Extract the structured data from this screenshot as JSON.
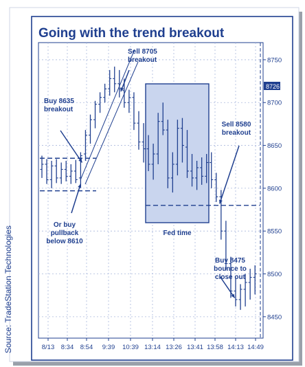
{
  "chart_data": {
    "type": "ohlc-bar",
    "title": "Going with the trend breakout",
    "source": "Source: TradeStation Technologies",
    "x_ticks": [
      "8/13",
      "8:34",
      "8:54",
      "9:39",
      "10:39",
      "13:14",
      "13:26",
      "13:41",
      "13:58",
      "14:13",
      "14:49"
    ],
    "y_ticks": [
      8750,
      8700,
      8650,
      8600,
      8550,
      8500,
      8450
    ],
    "ylim": [
      8425,
      8770
    ],
    "last_price": "8726",
    "grid": true,
    "reference_lines": [
      8635,
      8597,
      8580
    ],
    "annotations": [
      {
        "text": [
          "Buy 8635",
          "breakout"
        ],
        "target": [
          8.3,
          8630
        ]
      },
      {
        "text": [
          "Sell 8705",
          "breakout"
        ],
        "target": [
          16.3,
          8713
        ]
      },
      {
        "text": [
          "Or buy",
          "pullback",
          "below 8610"
        ],
        "target": [
          8.0,
          8605
        ]
      },
      {
        "text": [
          "Fed time"
        ],
        "target": null
      },
      {
        "text": [
          "Sell 8580",
          "breakout"
        ],
        "target": [
          36.7,
          8582
        ]
      },
      {
        "text": [
          "Buy 8475",
          "bounce to",
          "close out"
        ],
        "target": [
          39.8,
          8472
        ]
      }
    ],
    "bars": [
      [
        8622,
        8638,
        8612,
        8628
      ],
      [
        8628,
        8634,
        8605,
        8610
      ],
      [
        8610,
        8632,
        8600,
        8626
      ],
      [
        8626,
        8634,
        8606,
        8612
      ],
      [
        8612,
        8630,
        8605,
        8622
      ],
      [
        8622,
        8632,
        8608,
        8614
      ],
      [
        8614,
        8628,
        8605,
        8620
      ],
      [
        8620,
        8633,
        8606,
        8610
      ],
      [
        8612,
        8642,
        8602,
        8638
      ],
      [
        8640,
        8668,
        8632,
        8662
      ],
      [
        8662,
        8686,
        8652,
        8680
      ],
      [
        8680,
        8702,
        8670,
        8698
      ],
      [
        8698,
        8712,
        8688,
        8706
      ],
      [
        8706,
        8722,
        8700,
        8716
      ],
      [
        8716,
        8738,
        8708,
        8728
      ],
      [
        8728,
        8742,
        8712,
        8722
      ],
      [
        8722,
        8738,
        8706,
        8716
      ],
      [
        8714,
        8728,
        8694,
        8700
      ],
      [
        8700,
        8715,
        8688,
        8706
      ],
      [
        8706,
        8712,
        8668,
        8676
      ],
      [
        8676,
        8690,
        8645,
        8654
      ],
      [
        8654,
        8676,
        8630,
        8646
      ],
      [
        8646,
        8662,
        8620,
        8628
      ],
      [
        8628,
        8652,
        8610,
        8640
      ],
      [
        8640,
        8688,
        8628,
        8678
      ],
      [
        8678,
        8700,
        8662,
        8668
      ],
      [
        8668,
        8680,
        8600,
        8612
      ],
      [
        8612,
        8642,
        8595,
        8628
      ],
      [
        8628,
        8680,
        8615,
        8670
      ],
      [
        8670,
        8682,
        8630,
        8650
      ],
      [
        8648,
        8668,
        8612,
        8620
      ],
      [
        8620,
        8640,
        8602,
        8612
      ],
      [
        8612,
        8632,
        8598,
        8624
      ],
      [
        8624,
        8636,
        8604,
        8614
      ],
      [
        8614,
        8640,
        8606,
        8630
      ],
      [
        8630,
        8642,
        8600,
        8610
      ],
      [
        8610,
        8618,
        8584,
        8590
      ],
      [
        8590,
        8598,
        8540,
        8550
      ],
      [
        8550,
        8562,
        8505,
        8512
      ],
      [
        8512,
        8520,
        8472,
        8480
      ],
      [
        8480,
        8496,
        8462,
        8470
      ],
      [
        8470,
        8488,
        8458,
        8482
      ],
      [
        8482,
        8500,
        8462,
        8490
      ],
      [
        8490,
        8506,
        8470,
        8496
      ],
      [
        8496,
        8510,
        8476,
        8500
      ]
    ]
  }
}
